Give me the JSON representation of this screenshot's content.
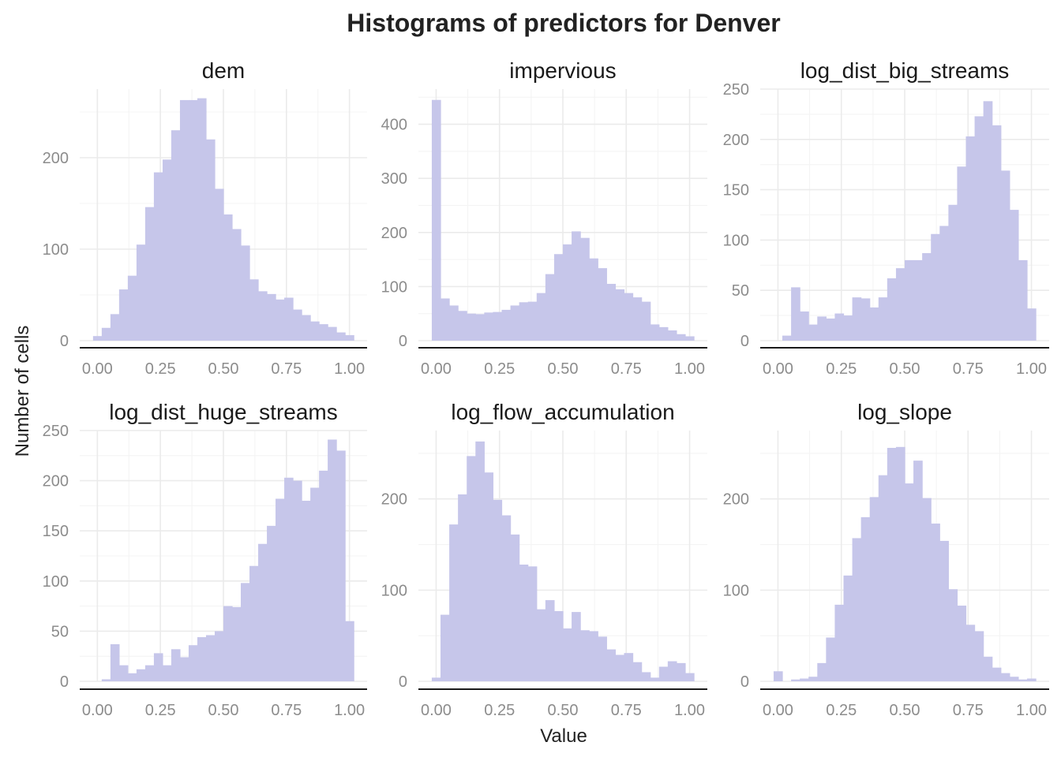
{
  "chart_data": {
    "type": "bar",
    "title": "Histograms of predictors for Denver",
    "xlabel": "Value",
    "ylabel": "Number of cells",
    "grid": true,
    "bar_color": "#c6c6ea",
    "bin_width": 0.0345,
    "panels": [
      {
        "name": "dem",
        "xlim": [
          -0.07,
          1.07
        ],
        "ylim": [
          0,
          275
        ],
        "x_ticks": [
          0,
          0.25,
          0.5,
          0.75,
          1
        ],
        "x_tick_labels": [
          "0.00",
          "0.25",
          "0.50",
          "0.75",
          "1.00"
        ],
        "y_ticks": [
          0,
          100,
          200
        ],
        "y_tick_labels": [
          "0",
          "100",
          "200"
        ],
        "x": [
          0.0,
          0.0345,
          0.069,
          0.1034,
          0.1379,
          0.1724,
          0.2069,
          0.2414,
          0.2759,
          0.3103,
          0.3448,
          0.3793,
          0.4138,
          0.4483,
          0.4828,
          0.5172,
          0.5517,
          0.5862,
          0.6207,
          0.6552,
          0.6897,
          0.7241,
          0.7586,
          0.7931,
          0.8276,
          0.8621,
          0.8966,
          0.931,
          0.9655,
          1.0
        ],
        "values": [
          5,
          14,
          29,
          56,
          71,
          105,
          146,
          184,
          198,
          230,
          263,
          263,
          265,
          220,
          166,
          138,
          122,
          104,
          67,
          54,
          51,
          45,
          47,
          34,
          28,
          21,
          18,
          15,
          9,
          6
        ]
      },
      {
        "name": "impervious",
        "xlim": [
          -0.07,
          1.07
        ],
        "ylim": [
          0,
          465
        ],
        "x_ticks": [
          0,
          0.25,
          0.5,
          0.75,
          1
        ],
        "x_tick_labels": [
          "0.00",
          "0.25",
          "0.50",
          "0.75",
          "1.00"
        ],
        "y_ticks": [
          0,
          100,
          200,
          300,
          400
        ],
        "y_tick_labels": [
          "0",
          "100",
          "200",
          "300",
          "400"
        ],
        "x": [
          0.0,
          0.0345,
          0.069,
          0.1034,
          0.1379,
          0.1724,
          0.2069,
          0.2414,
          0.2759,
          0.3103,
          0.3448,
          0.3793,
          0.4138,
          0.4483,
          0.4828,
          0.5172,
          0.5517,
          0.5862,
          0.6207,
          0.6552,
          0.6897,
          0.7241,
          0.7586,
          0.7931,
          0.8276,
          0.8621,
          0.8966,
          0.931,
          0.9655,
          1.0
        ],
        "values": [
          445,
          78,
          65,
          55,
          50,
          49,
          52,
          53,
          57,
          65,
          71,
          72,
          88,
          123,
          160,
          178,
          202,
          190,
          152,
          134,
          105,
          95,
          88,
          80,
          72,
          30,
          25,
          19,
          12,
          8
        ]
      },
      {
        "name": "log_dist_big_streams",
        "xlim": [
          -0.07,
          1.07
        ],
        "ylim": [
          0,
          250
        ],
        "x_ticks": [
          0,
          0.25,
          0.5,
          0.75,
          1
        ],
        "x_tick_labels": [
          "0.00",
          "0.25",
          "0.50",
          "0.75",
          "1.00"
        ],
        "y_ticks": [
          0,
          50,
          100,
          150,
          200,
          250
        ],
        "y_tick_labels": [
          "0",
          "50",
          "100",
          "150",
          "200",
          "250"
        ],
        "x": [
          0.0,
          0.0345,
          0.069,
          0.1034,
          0.1379,
          0.1724,
          0.2069,
          0.2414,
          0.2759,
          0.3103,
          0.3448,
          0.3793,
          0.4138,
          0.4483,
          0.4828,
          0.5172,
          0.5517,
          0.5862,
          0.6207,
          0.6552,
          0.6897,
          0.7241,
          0.7586,
          0.7931,
          0.8276,
          0.8621,
          0.8966,
          0.931,
          0.9655,
          1.0
        ],
        "values": [
          0,
          5,
          53,
          29,
          16,
          24,
          22,
          27,
          25,
          43,
          42,
          33,
          43,
          62,
          72,
          80,
          80,
          87,
          106,
          114,
          135,
          173,
          203,
          223,
          238,
          214,
          169,
          130,
          80,
          32
        ]
      },
      {
        "name": "log_dist_huge_streams",
        "xlim": [
          -0.07,
          1.07
        ],
        "ylim": [
          0,
          250
        ],
        "x_ticks": [
          0,
          0.25,
          0.5,
          0.75,
          1
        ],
        "x_tick_labels": [
          "0.00",
          "0.25",
          "0.50",
          "0.75",
          "1.00"
        ],
        "y_ticks": [
          0,
          50,
          100,
          150,
          200,
          250
        ],
        "y_tick_labels": [
          "0",
          "50",
          "100",
          "150",
          "200",
          "250"
        ],
        "x": [
          0.0,
          0.0345,
          0.069,
          0.1034,
          0.1379,
          0.1724,
          0.2069,
          0.2414,
          0.2759,
          0.3103,
          0.3448,
          0.3793,
          0.4138,
          0.4483,
          0.4828,
          0.5172,
          0.5517,
          0.5862,
          0.6207,
          0.6552,
          0.6897,
          0.7241,
          0.7586,
          0.7931,
          0.8276,
          0.8621,
          0.8966,
          0.931,
          0.9655,
          1.0
        ],
        "values": [
          0,
          2,
          37,
          16,
          8,
          12,
          16,
          28,
          16,
          32,
          24,
          36,
          44,
          46,
          50,
          75,
          74,
          98,
          115,
          137,
          155,
          182,
          203,
          200,
          180,
          193,
          210,
          241,
          230,
          60
        ]
      },
      {
        "name": "log_flow_accumulation",
        "xlim": [
          -0.07,
          1.07
        ],
        "ylim": [
          0,
          275
        ],
        "x_ticks": [
          0,
          0.25,
          0.5,
          0.75,
          1
        ],
        "x_tick_labels": [
          "0.00",
          "0.25",
          "0.50",
          "0.75",
          "1.00"
        ],
        "y_ticks": [
          0,
          100,
          200
        ],
        "y_tick_labels": [
          "0",
          "100",
          "200"
        ],
        "x": [
          0.0,
          0.0345,
          0.069,
          0.1034,
          0.1379,
          0.1724,
          0.2069,
          0.2414,
          0.2759,
          0.3103,
          0.3448,
          0.3793,
          0.4138,
          0.4483,
          0.4828,
          0.5172,
          0.5517,
          0.5862,
          0.6207,
          0.6552,
          0.6897,
          0.7241,
          0.7586,
          0.7931,
          0.8276,
          0.8621,
          0.8966,
          0.931,
          0.9655,
          1.0
        ],
        "values": [
          4,
          73,
          172,
          205,
          247,
          263,
          229,
          199,
          182,
          161,
          128,
          126,
          79,
          89,
          77,
          58,
          76,
          56,
          55,
          49,
          35,
          29,
          31,
          21,
          10,
          4,
          16,
          22,
          20,
          9
        ]
      },
      {
        "name": "log_slope",
        "xlim": [
          -0.07,
          1.07
        ],
        "ylim": [
          0,
          275
        ],
        "x_ticks": [
          0,
          0.25,
          0.5,
          0.75,
          1
        ],
        "x_tick_labels": [
          "0.00",
          "0.25",
          "0.50",
          "0.75",
          "1.00"
        ],
        "y_ticks": [
          0,
          100,
          200
        ],
        "y_tick_labels": [
          "0",
          "100",
          "200"
        ],
        "x": [
          0.0,
          0.0345,
          0.069,
          0.1034,
          0.1379,
          0.1724,
          0.2069,
          0.2414,
          0.2759,
          0.3103,
          0.3448,
          0.3793,
          0.4138,
          0.4483,
          0.4828,
          0.5172,
          0.5517,
          0.5862,
          0.6207,
          0.6552,
          0.6897,
          0.7241,
          0.7586,
          0.7931,
          0.8276,
          0.8621,
          0.8966,
          0.931,
          0.9655,
          1.0
        ],
        "values": [
          11,
          0,
          2,
          3,
          5,
          20,
          48,
          84,
          116,
          157,
          180,
          202,
          226,
          256,
          257,
          217,
          242,
          201,
          173,
          154,
          101,
          83,
          62,
          55,
          27,
          15,
          9,
          5,
          2,
          3
        ]
      }
    ]
  }
}
